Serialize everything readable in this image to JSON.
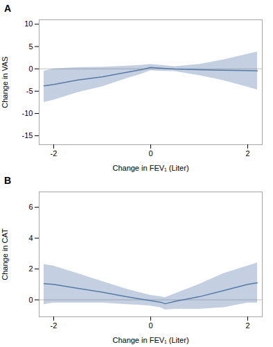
{
  "chart_data": [
    {
      "type": "line",
      "title": "A",
      "xlabel": "Change in FEV₁ (Liter)",
      "ylabel": "Change in VAS",
      "x": [
        -2.2,
        -2.0,
        -1.5,
        -1.0,
        -0.5,
        -0.2,
        0.0,
        0.2,
        0.5,
        1.0,
        1.5,
        2.0,
        2.2
      ],
      "values": [
        -3.8,
        -3.5,
        -2.5,
        -1.8,
        -0.8,
        -0.2,
        0.3,
        0.15,
        -0.05,
        -0.2,
        -0.3,
        -0.4,
        -0.45
      ],
      "ci_upper": [
        -0.5,
        0.0,
        0.3,
        0.4,
        0.6,
        0.8,
        1.0,
        0.8,
        0.5,
        1.0,
        2.0,
        3.3,
        3.8
      ],
      "ci_lower": [
        -7.5,
        -7.0,
        -5.3,
        -4.0,
        -2.2,
        -1.2,
        -0.4,
        -0.5,
        -0.6,
        -1.5,
        -2.6,
        -4.1,
        -4.7
      ],
      "reference_line": 0,
      "color": "#5579a8",
      "xlim": [
        -2.3,
        2.3
      ],
      "xticks": [
        -2,
        0,
        2
      ],
      "ylim": [
        -17,
        11
      ],
      "yticks": [
        10,
        5,
        0,
        -5,
        -10,
        -15
      ],
      "grid": false
    },
    {
      "type": "line",
      "title": "B",
      "xlabel": "Change in FEV₁ (Liter)",
      "ylabel": "Change in CAT",
      "x": [
        -2.2,
        -2.0,
        -1.5,
        -1.0,
        -0.5,
        -0.2,
        0.0,
        0.2,
        0.3,
        0.5,
        1.0,
        1.5,
        2.0,
        2.2
      ],
      "values": [
        1.05,
        1.0,
        0.75,
        0.5,
        0.2,
        0.05,
        -0.05,
        -0.15,
        -0.25,
        -0.1,
        0.2,
        0.6,
        1.0,
        1.1
      ],
      "ci_upper": [
        2.3,
        2.2,
        1.7,
        1.2,
        0.7,
        0.45,
        0.3,
        0.2,
        0.15,
        0.4,
        1.0,
        1.7,
        2.2,
        2.4
      ],
      "ci_lower": [
        -0.3,
        -0.2,
        -0.2,
        -0.2,
        -0.3,
        -0.35,
        -0.4,
        -0.5,
        -0.65,
        -0.6,
        -0.6,
        -0.5,
        -0.2,
        -0.2
      ],
      "reference_line": 0,
      "color": "#5579a8",
      "xlim": [
        -2.3,
        2.3
      ],
      "xticks": [
        -2,
        0,
        2
      ],
      "ylim": [
        -1.1,
        7.0
      ],
      "yticks": [
        0,
        2,
        4,
        6
      ],
      "grid": false
    }
  ]
}
